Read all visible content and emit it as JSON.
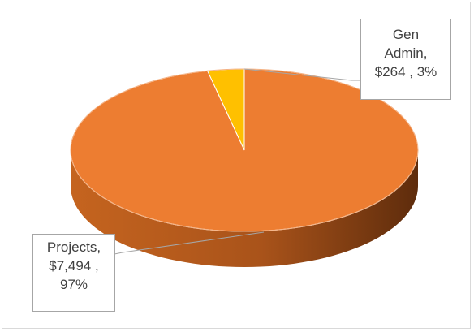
{
  "chart_data": {
    "type": "pie",
    "style": "3d",
    "title": "",
    "slices": [
      {
        "label": "Gen Admin",
        "value": 264,
        "value_text": "$264",
        "percent_text": "3%",
        "color": "#ffc000"
      },
      {
        "label": "Projects",
        "value": 7494,
        "value_text": "$7,494",
        "percent_text": "97%",
        "color": "#ed7d31"
      }
    ]
  },
  "callouts": {
    "gen_admin": {
      "line1": "Gen",
      "line2": "Admin,",
      "line3": "$264 , 3%"
    },
    "projects": {
      "line1": "Projects,",
      "line2": "$7,494 ,",
      "line3": "97%"
    }
  }
}
